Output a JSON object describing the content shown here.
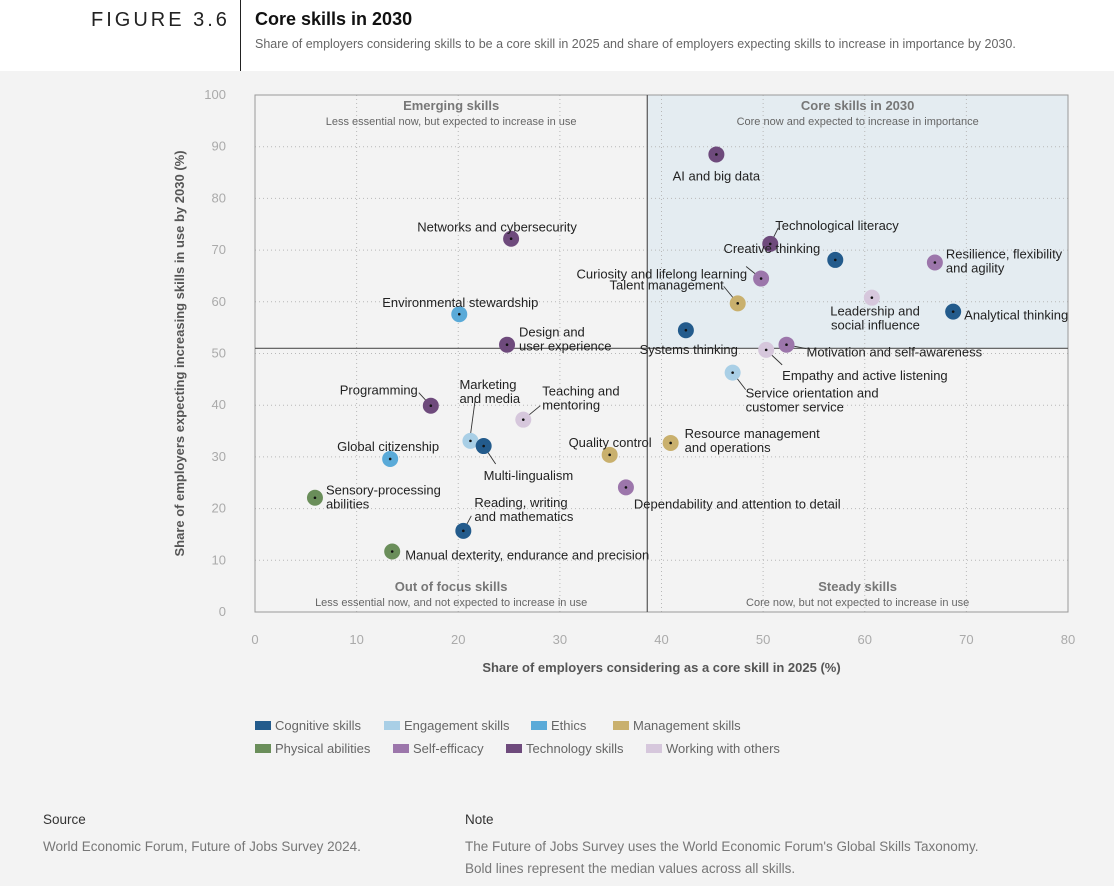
{
  "header": {
    "figure_label": "FIGURE 3.6",
    "title": "Core skills in 2030",
    "subtitle": "Share of employers considering skills to be a core skill in 2025 and share of employers expecting skills to increase in importance by 2030."
  },
  "chart_data": {
    "type": "scatter",
    "xlabel": "Share of employers considering as a core skill in 2025 (%)",
    "ylabel": "Share of employers expecting increasing skills in use by 2030 (%)",
    "xlim": [
      0,
      80
    ],
    "ylim": [
      0,
      100
    ],
    "xticks": [
      0,
      10,
      20,
      30,
      40,
      50,
      60,
      70,
      80
    ],
    "yticks": [
      0,
      10,
      20,
      30,
      40,
      50,
      60,
      70,
      80,
      90,
      100
    ],
    "grid": true,
    "median_x": 38.6,
    "median_y": 51,
    "quadrants": [
      {
        "title": "Emerging skills",
        "desc": "Less essential now, but expected to increase in use"
      },
      {
        "title": "Core skills in 2030",
        "desc": "Core now and expected to increase in importance"
      },
      {
        "title": "Out of focus skills",
        "desc": "Less essential now, and not expected to increase in use"
      },
      {
        "title": "Steady skills",
        "desc": "Core now, but not expected to increase in use"
      }
    ],
    "categories": [
      {
        "name": "Cognitive skills",
        "color": "#235b8c"
      },
      {
        "name": "Engagement skills",
        "color": "#a9cfe6"
      },
      {
        "name": "Ethics",
        "color": "#5aaad8"
      },
      {
        "name": "Management skills",
        "color": "#c9b06d"
      },
      {
        "name": "Physical abilities",
        "color": "#6a8e5a"
      },
      {
        "name": "Self-efficacy",
        "color": "#9c76ab"
      },
      {
        "name": "Technology skills",
        "color": "#6e4a7c"
      },
      {
        "name": "Working with others",
        "color": "#d6c7dc"
      }
    ],
    "points": [
      {
        "label": "AI and big data",
        "category": "Technology skills",
        "x": 45.4,
        "y": 88.5
      },
      {
        "label": "Technological literacy",
        "category": "Technology skills",
        "x": 50.7,
        "y": 71.2
      },
      {
        "label": "Creative thinking",
        "category": "Cognitive skills",
        "x": 57.1,
        "y": 68.1
      },
      {
        "label": "Resilience, flexibility and agility",
        "category": "Self-efficacy",
        "x": 66.9,
        "y": 67.6
      },
      {
        "label": "Curiosity and lifelong learning",
        "category": "Self-efficacy",
        "x": 49.8,
        "y": 64.5
      },
      {
        "label": "Talent management",
        "category": "Management skills",
        "x": 47.5,
        "y": 59.7
      },
      {
        "label": "Leadership and social influence",
        "category": "Working with others",
        "x": 60.7,
        "y": 60.8
      },
      {
        "label": "Analytical thinking",
        "category": "Cognitive skills",
        "x": 68.7,
        "y": 58.1
      },
      {
        "label": "Systems thinking",
        "category": "Cognitive skills",
        "x": 42.4,
        "y": 54.5
      },
      {
        "label": "Motivation and self-awareness",
        "category": "Self-efficacy",
        "x": 52.3,
        "y": 51.7
      },
      {
        "label": "Empathy and active listening",
        "category": "Working with others",
        "x": 50.3,
        "y": 50.7
      },
      {
        "label": "Service orientation and customer service",
        "category": "Engagement skills",
        "x": 47.0,
        "y": 46.3
      },
      {
        "label": "Networks and cybersecurity",
        "category": "Technology skills",
        "x": 25.2,
        "y": 72.2
      },
      {
        "label": "Environmental stewardship",
        "category": "Ethics",
        "x": 20.1,
        "y": 57.6
      },
      {
        "label": "Design and user experience",
        "category": "Technology skills",
        "x": 24.8,
        "y": 51.7
      },
      {
        "label": "Programming",
        "category": "Technology skills",
        "x": 17.3,
        "y": 39.9
      },
      {
        "label": "Marketing and media",
        "category": "Engagement skills",
        "x": 21.2,
        "y": 33.1
      },
      {
        "label": "Teaching and mentoring",
        "category": "Working with others",
        "x": 26.4,
        "y": 37.2
      },
      {
        "label": "Multi-lingualism",
        "category": "Cognitive skills",
        "x": 22.5,
        "y": 32.1
      },
      {
        "label": "Global citizenship",
        "category": "Ethics",
        "x": 13.3,
        "y": 29.6
      },
      {
        "label": "Quality control",
        "category": "Management skills",
        "x": 34.9,
        "y": 30.4
      },
      {
        "label": "Resource management and operations",
        "category": "Management skills",
        "x": 40.9,
        "y": 32.7
      },
      {
        "label": "Dependability and attention to detail",
        "category": "Self-efficacy",
        "x": 36.5,
        "y": 24.1
      },
      {
        "label": "Sensory-processing abilities",
        "category": "Physical abilities",
        "x": 5.9,
        "y": 22.1
      },
      {
        "label": "Reading, writing and mathematics",
        "category": "Cognitive skills",
        "x": 20.5,
        "y": 15.7
      },
      {
        "label": "Manual dexterity, endurance and precision",
        "category": "Physical abilities",
        "x": 13.5,
        "y": 11.7
      }
    ]
  },
  "footer": {
    "source_heading": "Source",
    "source_text": "World Economic Forum, Future of Jobs Survey 2024.",
    "note_heading": "Note",
    "note_line1": "The Future of Jobs Survey uses the World Economic Forum's Global Skills Taxonomy.",
    "note_line2": "Bold lines represent the median values across all skills."
  }
}
